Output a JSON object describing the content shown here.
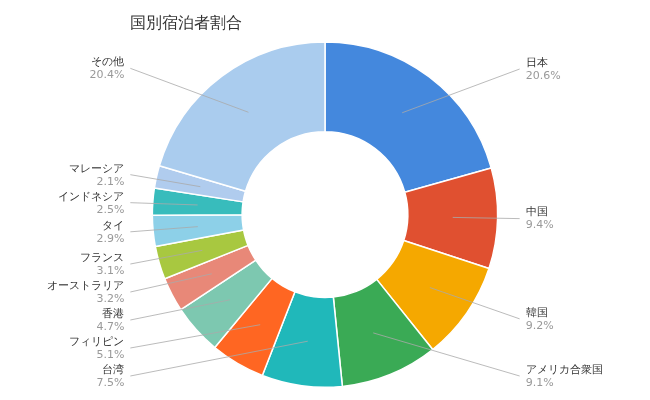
{
  "chart_data": {
    "type": "doughnut",
    "title": "国別宿泊者割合",
    "categories": [
      "日本",
      "中国",
      "韓国",
      "アメリカ合衆国",
      "台湾",
      "フィリピン",
      "香港",
      "オーストラリア",
      "フランス",
      "タイ",
      "インドネシア",
      "マレーシア",
      "その他"
    ],
    "values": [
      20.6,
      9.4,
      9.2,
      9.1,
      7.5,
      5.1,
      4.7,
      3.2,
      3.1,
      2.9,
      2.5,
      2.1,
      20.4
    ],
    "value_labels": [
      "20.6%",
      "9.4%",
      "9.2%",
      "9.1%",
      "7.5%",
      "5.1%",
      "4.7%",
      "3.2%",
      "3.1%",
      "2.9%",
      "2.5%",
      "2.1%",
      "20.4%"
    ],
    "colors": [
      "#4488DD",
      "#E05030",
      "#F5A800",
      "#3AAA55",
      "#20B8BA",
      "#FF6622",
      "#7DC8B0",
      "#E88878",
      "#A8C840",
      "#8DD0E8",
      "#38BCBC",
      "#B0CCEE",
      "#AACCEE"
    ],
    "data_labels": true,
    "legend": false
  }
}
